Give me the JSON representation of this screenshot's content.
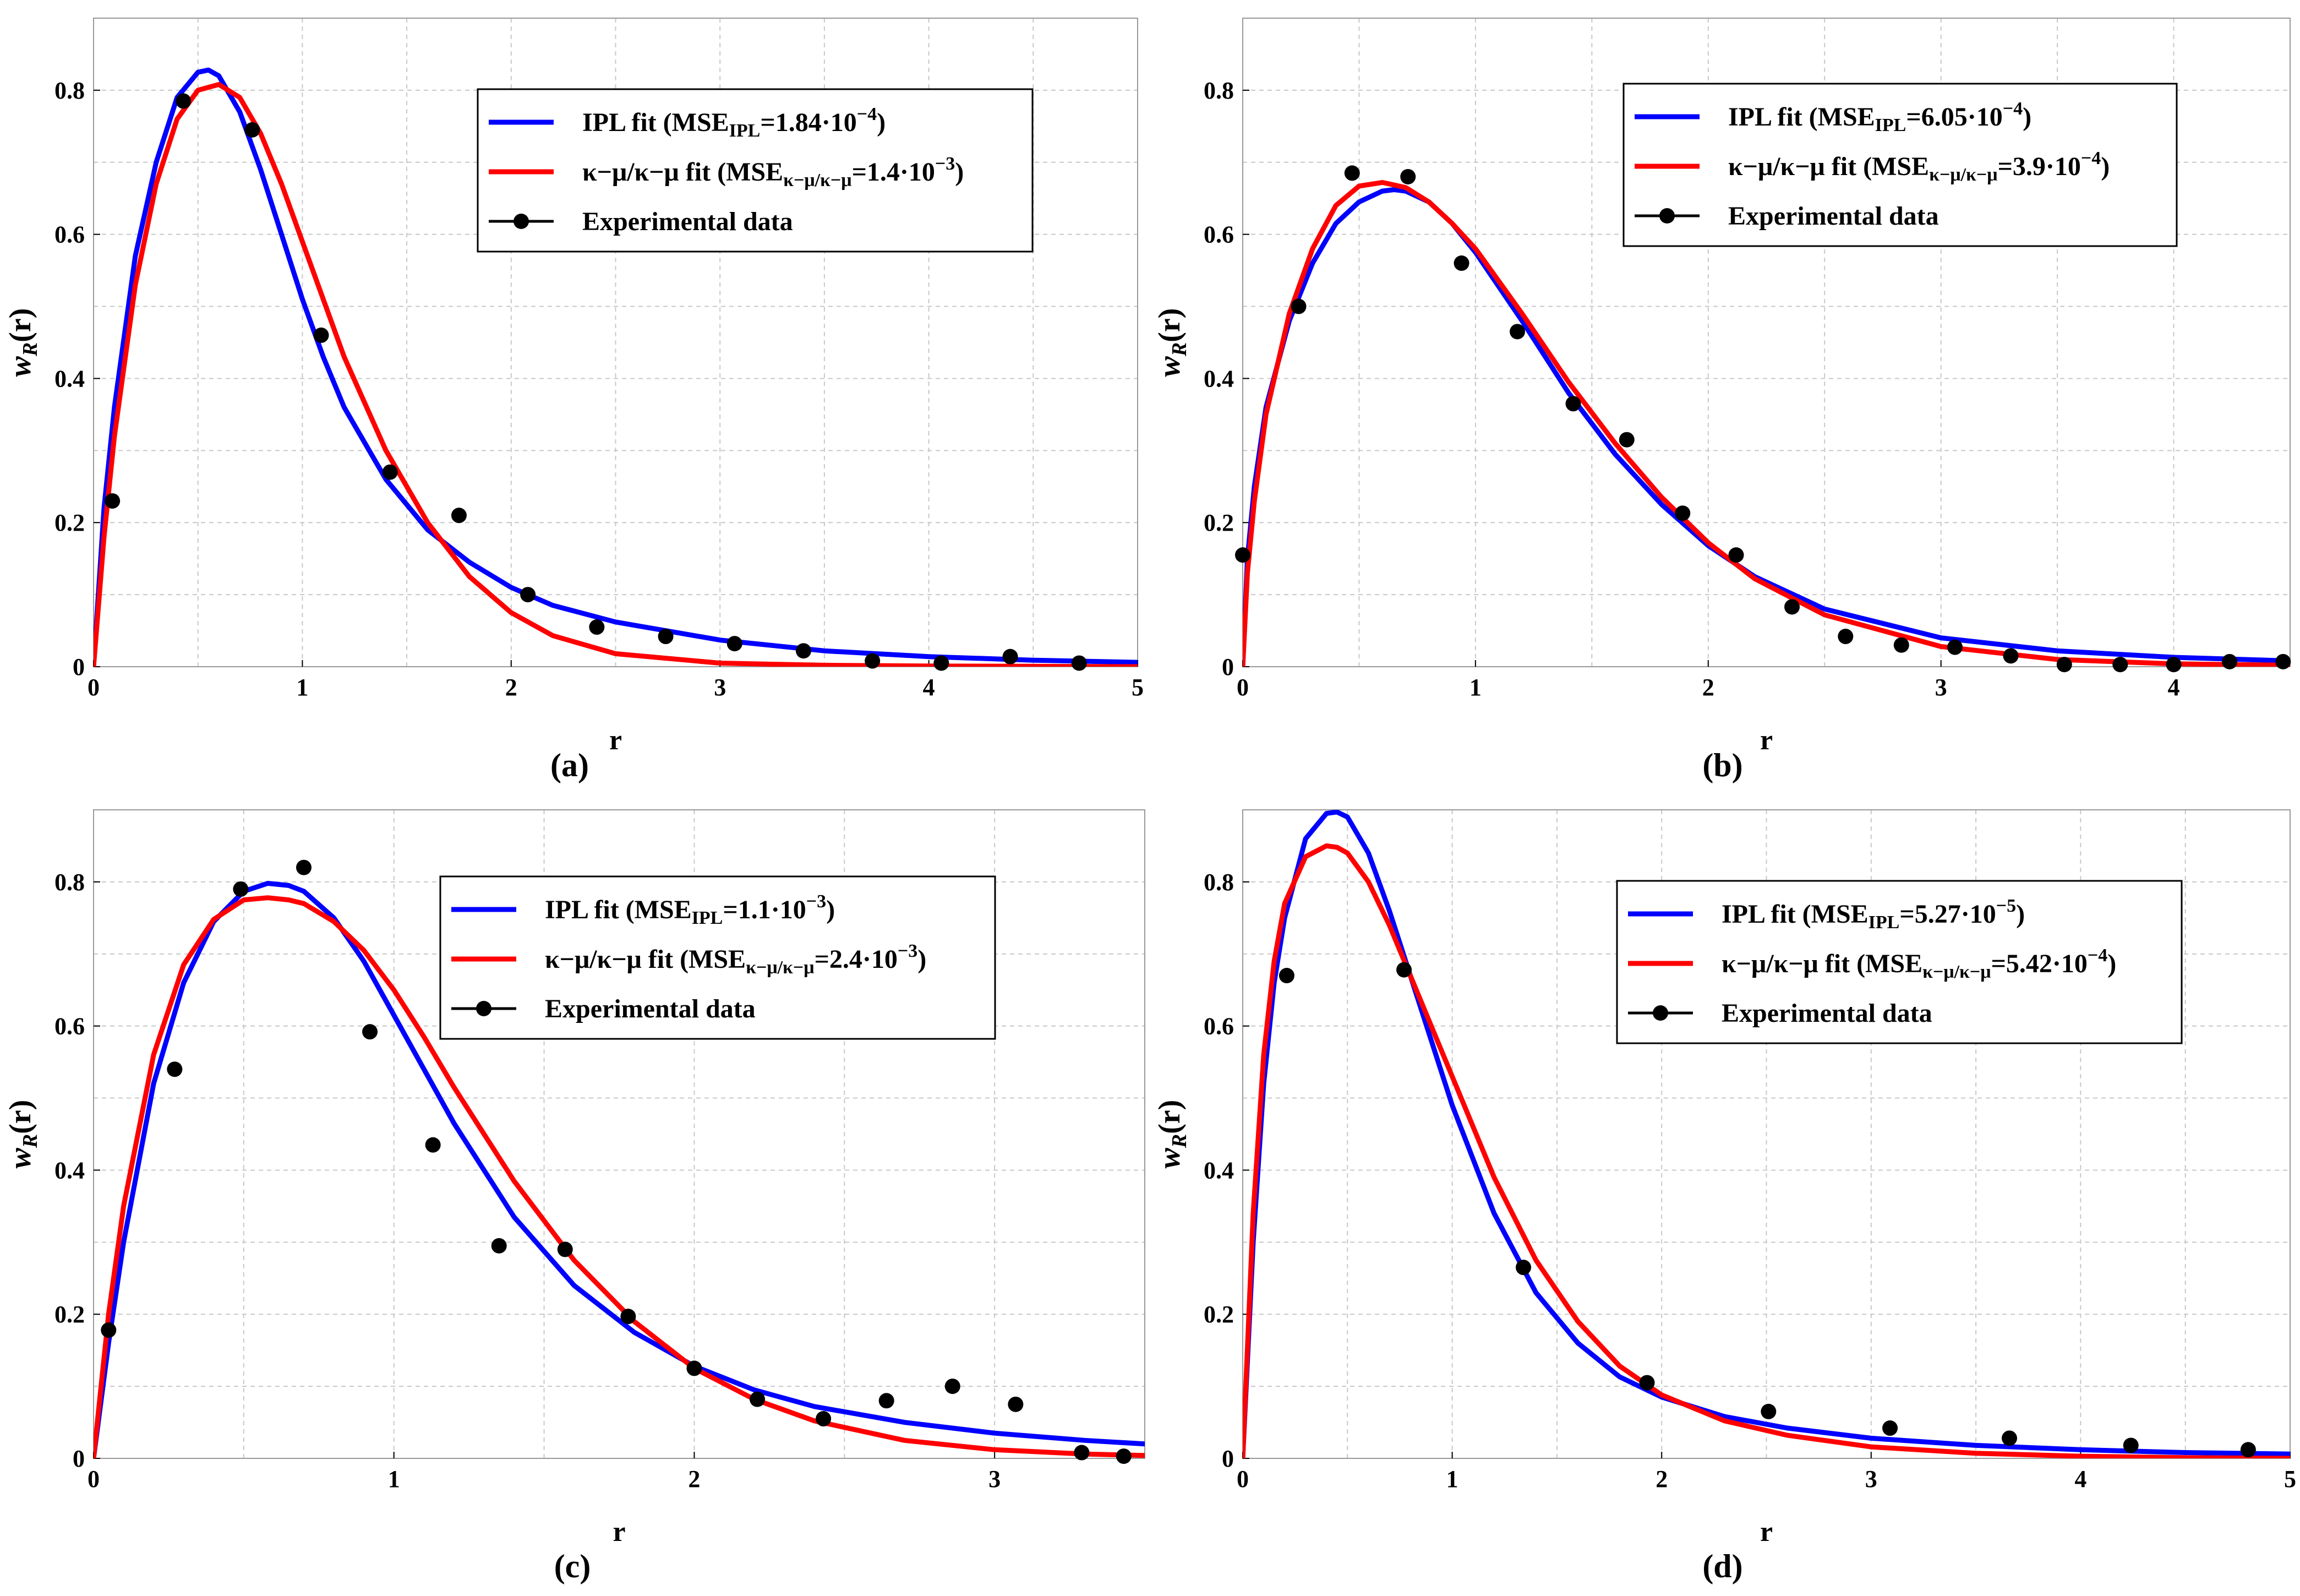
{
  "colors": {
    "ipl": "#0000ff",
    "kmu": "#ff0000",
    "data": "#000000",
    "grid": "#c8c8c8"
  },
  "chart_data": [
    {
      "type": "line",
      "panel_label": "(a)",
      "xlabel": "r",
      "ylabel_main": "w",
      "ylabel_sub": "R",
      "ylabel_tail": "(r)",
      "xlim": [
        0,
        5
      ],
      "ylim": [
        0,
        0.9
      ],
      "xticks": [
        0,
        1,
        2,
        3,
        4,
        5
      ],
      "yticks": [
        0,
        0.2,
        0.4,
        0.6,
        0.8
      ],
      "xtick_labels": [
        "0",
        "1",
        "2",
        "3",
        "4",
        "5"
      ],
      "ytick_labels": [
        "0",
        "0.2",
        "0.4",
        "0.6",
        "0.8"
      ],
      "legend": {
        "ipl": {
          "text": "IPL fit (MSE",
          "sub": "IPL",
          "mid": "=1.84·10",
          "sup": "−4",
          "tail": ")"
        },
        "kmu": {
          "text": "κ−μ/κ−μ fit (MSE",
          "sub": "κ−μ/κ−μ",
          "mid": "=1.4·10",
          "sup": "−3",
          "tail": ")"
        },
        "data": {
          "text": "Experimental data"
        }
      },
      "series": [
        {
          "name": "IPL fit",
          "x": [
            0,
            0.05,
            0.1,
            0.2,
            0.3,
            0.4,
            0.5,
            0.55,
            0.6,
            0.7,
            0.8,
            0.9,
            1.0,
            1.1,
            1.2,
            1.4,
            1.6,
            1.8,
            2.0,
            2.2,
            2.5,
            3.0,
            3.5,
            4.0,
            4.5,
            5.0
          ],
          "y": [
            0,
            0.22,
            0.36,
            0.57,
            0.7,
            0.79,
            0.825,
            0.828,
            0.82,
            0.77,
            0.69,
            0.6,
            0.51,
            0.43,
            0.36,
            0.26,
            0.19,
            0.145,
            0.11,
            0.085,
            0.062,
            0.037,
            0.022,
            0.014,
            0.009,
            0.006
          ]
        },
        {
          "name": "κ−μ/κ−μ fit",
          "x": [
            0,
            0.05,
            0.1,
            0.2,
            0.3,
            0.4,
            0.5,
            0.6,
            0.7,
            0.8,
            0.9,
            1.0,
            1.1,
            1.2,
            1.4,
            1.6,
            1.8,
            2.0,
            2.2,
            2.5,
            3.0,
            3.5,
            4.0,
            4.5,
            5.0
          ],
          "y": [
            0,
            0.18,
            0.32,
            0.53,
            0.67,
            0.76,
            0.8,
            0.808,
            0.79,
            0.74,
            0.67,
            0.59,
            0.51,
            0.43,
            0.3,
            0.2,
            0.125,
            0.075,
            0.043,
            0.018,
            0.005,
            0.002,
            0.001,
            0.0005,
            0
          ]
        }
      ],
      "points": {
        "x": [
          0.09,
          0.43,
          0.76,
          1.09,
          1.42,
          1.75,
          2.08,
          2.41,
          2.74,
          3.07,
          3.4,
          3.73,
          4.06,
          4.39,
          4.72
        ],
        "y": [
          0.23,
          0.785,
          0.745,
          0.46,
          0.27,
          0.21,
          0.1,
          0.055,
          0.042,
          0.032,
          0.022,
          0.008,
          0.005,
          0.014,
          0.005
        ]
      }
    },
    {
      "type": "line",
      "panel_label": "(b)",
      "xlabel": "r",
      "ylabel_main": "w",
      "ylabel_sub": "R",
      "ylabel_tail": "(r)",
      "xlim": [
        0,
        4.5
      ],
      "ylim": [
        0,
        0.9
      ],
      "xticks": [
        0,
        1,
        2,
        3,
        4
      ],
      "yticks": [
        0,
        0.2,
        0.4,
        0.6,
        0.8
      ],
      "xtick_labels": [
        "0",
        "1",
        "2",
        "3",
        "4"
      ],
      "ytick_labels": [
        "0",
        "0.2",
        "0.4",
        "0.6",
        "0.8"
      ],
      "legend": {
        "ipl": {
          "text": "IPL fit (MSE",
          "sub": "IPL",
          "mid": "=6.05·10",
          "sup": "−4",
          "tail": ")"
        },
        "kmu": {
          "text": "κ−μ/κ−μ fit (MSE",
          "sub": "κ−μ/κ−μ",
          "mid": "=3.9·10",
          "sup": "−4",
          "tail": ")"
        },
        "data": {
          "text": "Experimental data"
        }
      },
      "series": [
        {
          "name": "IPL fit",
          "x": [
            0,
            0.02,
            0.05,
            0.1,
            0.2,
            0.3,
            0.4,
            0.5,
            0.6,
            0.65,
            0.7,
            0.8,
            0.9,
            1.0,
            1.2,
            1.4,
            1.6,
            1.8,
            2.0,
            2.2,
            2.5,
            3.0,
            3.5,
            4.0,
            4.5
          ],
          "y": [
            0,
            0.15,
            0.25,
            0.36,
            0.48,
            0.56,
            0.615,
            0.645,
            0.66,
            0.662,
            0.66,
            0.645,
            0.615,
            0.575,
            0.48,
            0.38,
            0.295,
            0.225,
            0.168,
            0.125,
            0.08,
            0.04,
            0.022,
            0.013,
            0.008
          ]
        },
        {
          "name": "κ−μ/κ−μ fit",
          "x": [
            0,
            0.02,
            0.05,
            0.1,
            0.2,
            0.3,
            0.4,
            0.5,
            0.6,
            0.7,
            0.8,
            0.9,
            1.0,
            1.2,
            1.4,
            1.6,
            1.8,
            2.0,
            2.2,
            2.5,
            3.0,
            3.5,
            4.0,
            4.5
          ],
          "y": [
            0,
            0.13,
            0.23,
            0.35,
            0.49,
            0.58,
            0.64,
            0.667,
            0.672,
            0.665,
            0.645,
            0.615,
            0.58,
            0.49,
            0.395,
            0.31,
            0.235,
            0.172,
            0.122,
            0.072,
            0.028,
            0.01,
            0.004,
            0.002
          ]
        }
      ],
      "points": {
        "x": [
          0,
          0.24,
          0.47,
          0.71,
          0.94,
          1.18,
          1.42,
          1.65,
          1.89,
          2.12,
          2.36,
          2.59,
          2.83,
          3.06,
          3.3,
          3.53,
          3.77,
          4.0,
          4.24,
          4.47
        ],
        "y": [
          0.155,
          0.5,
          0.685,
          0.68,
          0.56,
          0.465,
          0.365,
          0.315,
          0.213,
          0.155,
          0.083,
          0.042,
          0.03,
          0.027,
          0.015,
          0.003,
          0.003,
          0.003,
          0.007,
          0.007
        ]
      }
    },
    {
      "type": "line",
      "panel_label": "(c)",
      "xlabel": "r",
      "ylabel_main": "w",
      "ylabel_sub": "R",
      "ylabel_tail": "(r)",
      "xlim": [
        0,
        3.5
      ],
      "ylim": [
        0,
        0.9
      ],
      "xticks": [
        0,
        1,
        2,
        3
      ],
      "yticks": [
        0,
        0.2,
        0.4,
        0.6,
        0.8
      ],
      "xtick_labels": [
        "0",
        "1",
        "2",
        "3"
      ],
      "ytick_labels": [
        "0",
        "0.2",
        "0.4",
        "0.6",
        "0.8"
      ],
      "legend": {
        "ipl": {
          "text": "IPL fit (MSE",
          "sub": "IPL",
          "mid": "=1.1·10",
          "sup": "−3",
          "tail": ")"
        },
        "kmu": {
          "text": "κ−μ/κ−μ fit (MSE",
          "sub": "κ−μ/κ−μ",
          "mid": "=2.4·10",
          "sup": "−3",
          "tail": ")"
        },
        "data": {
          "text": "Experimental data"
        }
      },
      "series": [
        {
          "name": "IPL fit",
          "x": [
            0,
            0.05,
            0.1,
            0.2,
            0.3,
            0.4,
            0.5,
            0.58,
            0.65,
            0.7,
            0.8,
            0.9,
            1.0,
            1.1,
            1.2,
            1.4,
            1.6,
            1.8,
            2.0,
            2.2,
            2.4,
            2.7,
            3.0,
            3.3,
            3.5
          ],
          "y": [
            0,
            0.16,
            0.3,
            0.52,
            0.66,
            0.745,
            0.787,
            0.798,
            0.795,
            0.787,
            0.75,
            0.69,
            0.615,
            0.54,
            0.465,
            0.335,
            0.24,
            0.175,
            0.128,
            0.095,
            0.072,
            0.05,
            0.035,
            0.025,
            0.02
          ]
        },
        {
          "name": "κ−μ/κ−μ fit",
          "x": [
            0,
            0.05,
            0.1,
            0.2,
            0.3,
            0.4,
            0.5,
            0.58,
            0.65,
            0.7,
            0.8,
            0.9,
            1.0,
            1.1,
            1.2,
            1.4,
            1.6,
            1.8,
            2.0,
            2.2,
            2.4,
            2.7,
            3.0,
            3.3,
            3.5
          ],
          "y": [
            0,
            0.2,
            0.35,
            0.56,
            0.685,
            0.748,
            0.775,
            0.778,
            0.775,
            0.77,
            0.745,
            0.705,
            0.65,
            0.585,
            0.515,
            0.385,
            0.275,
            0.19,
            0.125,
            0.082,
            0.052,
            0.025,
            0.012,
            0.006,
            0.004
          ]
        }
      ],
      "points": {
        "x": [
          0.05,
          0.27,
          0.49,
          0.7,
          0.92,
          1.13,
          1.35,
          1.57,
          1.78,
          2.0,
          2.21,
          2.43,
          2.64,
          2.86,
          3.07,
          3.29,
          3.43
        ],
        "y": [
          0.178,
          0.54,
          0.79,
          0.82,
          0.592,
          0.435,
          0.295,
          0.29,
          0.197,
          0.125,
          0.082,
          0.055,
          0.08,
          0.1,
          0.075,
          0.008,
          0.003
        ]
      }
    },
    {
      "type": "line",
      "panel_label": "(d)",
      "xlabel": "r",
      "ylabel_main": "w",
      "ylabel_sub": "R",
      "ylabel_tail": "(r)",
      "xlim": [
        0,
        5
      ],
      "ylim": [
        0,
        0.9
      ],
      "xticks": [
        0,
        1,
        2,
        3,
        4,
        5
      ],
      "yticks": [
        0,
        0.2,
        0.4,
        0.6,
        0.8
      ],
      "xtick_labels": [
        "0",
        "1",
        "2",
        "3",
        "4",
        "5"
      ],
      "ytick_labels": [
        "0",
        "0.2",
        "0.4",
        "0.6",
        "0.8"
      ],
      "legend": {
        "ipl": {
          "text": "IPL fit (MSE",
          "sub": "IPL",
          "mid": "=5.27·10",
          "sup": "−5",
          "tail": ")"
        },
        "kmu": {
          "text": "κ−μ/κ−μ fit (MSE",
          "sub": "κ−μ/κ−μ",
          "mid": "=5.42·10",
          "sup": "−4",
          "tail": ")"
        },
        "data": {
          "text": "Experimental data"
        }
      },
      "series": [
        {
          "name": "IPL fit",
          "x": [
            0,
            0.05,
            0.1,
            0.15,
            0.2,
            0.3,
            0.4,
            0.45,
            0.5,
            0.6,
            0.7,
            0.8,
            0.9,
            1.0,
            1.2,
            1.4,
            1.6,
            1.8,
            2.0,
            2.3,
            2.6,
            3.0,
            3.5,
            4.0,
            4.5,
            5.0
          ],
          "y": [
            0,
            0.3,
            0.52,
            0.66,
            0.75,
            0.86,
            0.895,
            0.897,
            0.89,
            0.84,
            0.76,
            0.67,
            0.58,
            0.49,
            0.34,
            0.23,
            0.16,
            0.113,
            0.085,
            0.058,
            0.042,
            0.028,
            0.018,
            0.012,
            0.008,
            0.006
          ]
        },
        {
          "name": "κ−μ/κ−μ fit",
          "x": [
            0,
            0.05,
            0.1,
            0.15,
            0.2,
            0.3,
            0.4,
            0.45,
            0.5,
            0.6,
            0.7,
            0.8,
            0.9,
            1.0,
            1.2,
            1.4,
            1.6,
            1.8,
            2.0,
            2.3,
            2.6,
            3.0,
            3.5,
            4.0,
            4.5,
            5.0
          ],
          "y": [
            0,
            0.34,
            0.56,
            0.69,
            0.77,
            0.835,
            0.85,
            0.848,
            0.84,
            0.8,
            0.74,
            0.67,
            0.6,
            0.53,
            0.39,
            0.275,
            0.19,
            0.128,
            0.088,
            0.052,
            0.032,
            0.016,
            0.007,
            0.003,
            0.001,
            0
          ]
        }
      ],
      "points": {
        "x": [
          0.21,
          0.77,
          1.34,
          1.93,
          2.51,
          3.09,
          3.66,
          4.24,
          4.8
        ],
        "y": [
          0.67,
          0.678,
          0.265,
          0.105,
          0.065,
          0.042,
          0.028,
          0.018,
          0.012
        ]
      }
    }
  ]
}
